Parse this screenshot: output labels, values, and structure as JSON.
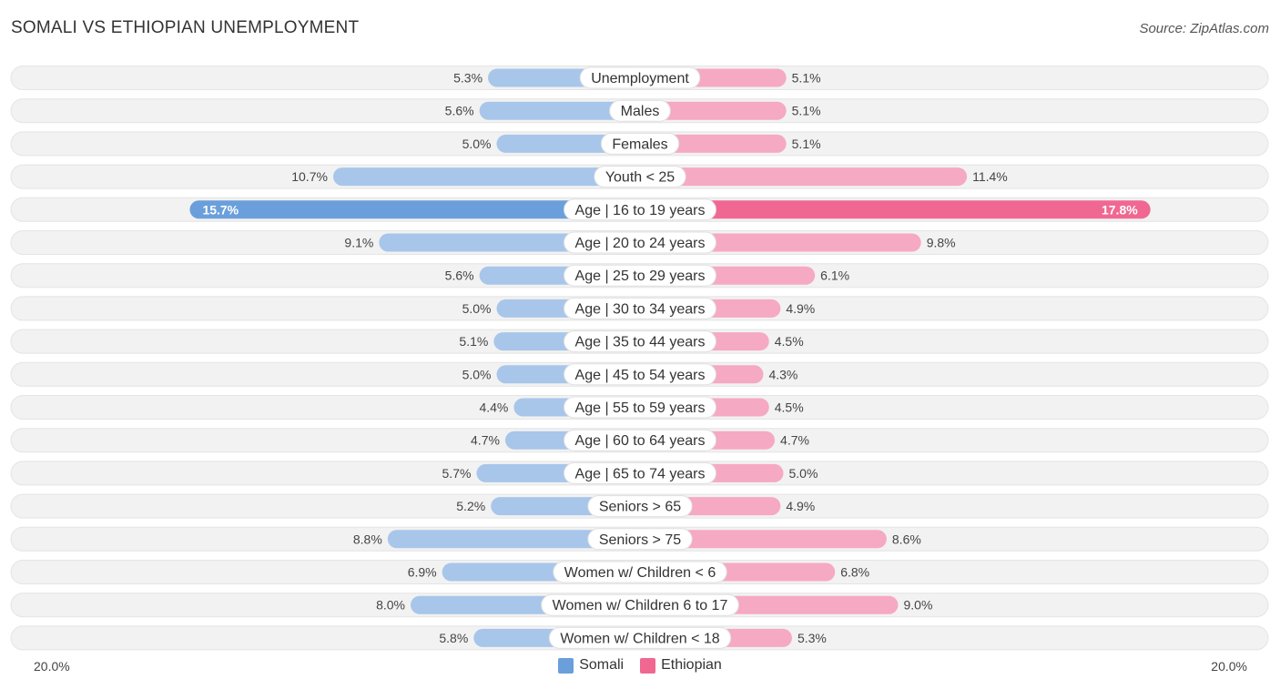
{
  "title": "SOMALI VS ETHIOPIAN UNEMPLOYMENT",
  "source": "Source: ZipAtlas.com",
  "colors": {
    "somali": "#a8c6ea",
    "somali_strong": "#6a9fdc",
    "ethiopian": "#f6a9c2",
    "ethiopian_strong": "#f06892",
    "row_bg": "#f2f2f2"
  },
  "chart_data": {
    "type": "bar",
    "orientation": "horizontal-diverging",
    "title": "SOMALI VS ETHIOPIAN UNEMPLOYMENT",
    "xlim": [
      0,
      20.0
    ],
    "axis_min_label": "20.0%",
    "axis_max_label": "20.0%",
    "categories": [
      "Unemployment",
      "Males",
      "Females",
      "Youth < 25",
      "Age | 16 to 19 years",
      "Age | 20 to 24 years",
      "Age | 25 to 29 years",
      "Age | 30 to 34 years",
      "Age | 35 to 44 years",
      "Age | 45 to 54 years",
      "Age | 55 to 59 years",
      "Age | 60 to 64 years",
      "Age | 65 to 74 years",
      "Seniors > 65",
      "Seniors > 75",
      "Women w/ Children < 6",
      "Women w/ Children 6 to 17",
      "Women w/ Children < 18"
    ],
    "series": [
      {
        "name": "Somali",
        "values": [
          5.3,
          5.6,
          5.0,
          10.7,
          15.7,
          9.1,
          5.6,
          5.0,
          5.1,
          5.0,
          4.4,
          4.7,
          5.7,
          5.2,
          8.8,
          6.9,
          8.0,
          5.8
        ],
        "labels": [
          "5.3%",
          "5.6%",
          "5.0%",
          "10.7%",
          "15.7%",
          "9.1%",
          "5.6%",
          "5.0%",
          "5.1%",
          "5.0%",
          "4.4%",
          "4.7%",
          "5.7%",
          "5.2%",
          "8.8%",
          "6.9%",
          "8.0%",
          "5.8%"
        ]
      },
      {
        "name": "Ethiopian",
        "values": [
          5.1,
          5.1,
          5.1,
          11.4,
          17.8,
          9.8,
          6.1,
          4.9,
          4.5,
          4.3,
          4.5,
          4.7,
          5.0,
          4.9,
          8.6,
          6.8,
          9.0,
          5.3
        ],
        "labels": [
          "5.1%",
          "5.1%",
          "5.1%",
          "11.4%",
          "17.8%",
          "9.8%",
          "6.1%",
          "4.9%",
          "4.5%",
          "4.3%",
          "4.5%",
          "4.7%",
          "5.0%",
          "4.9%",
          "8.6%",
          "6.8%",
          "9.0%",
          "5.3%"
        ]
      }
    ],
    "legend": [
      "Somali",
      "Ethiopian"
    ]
  }
}
